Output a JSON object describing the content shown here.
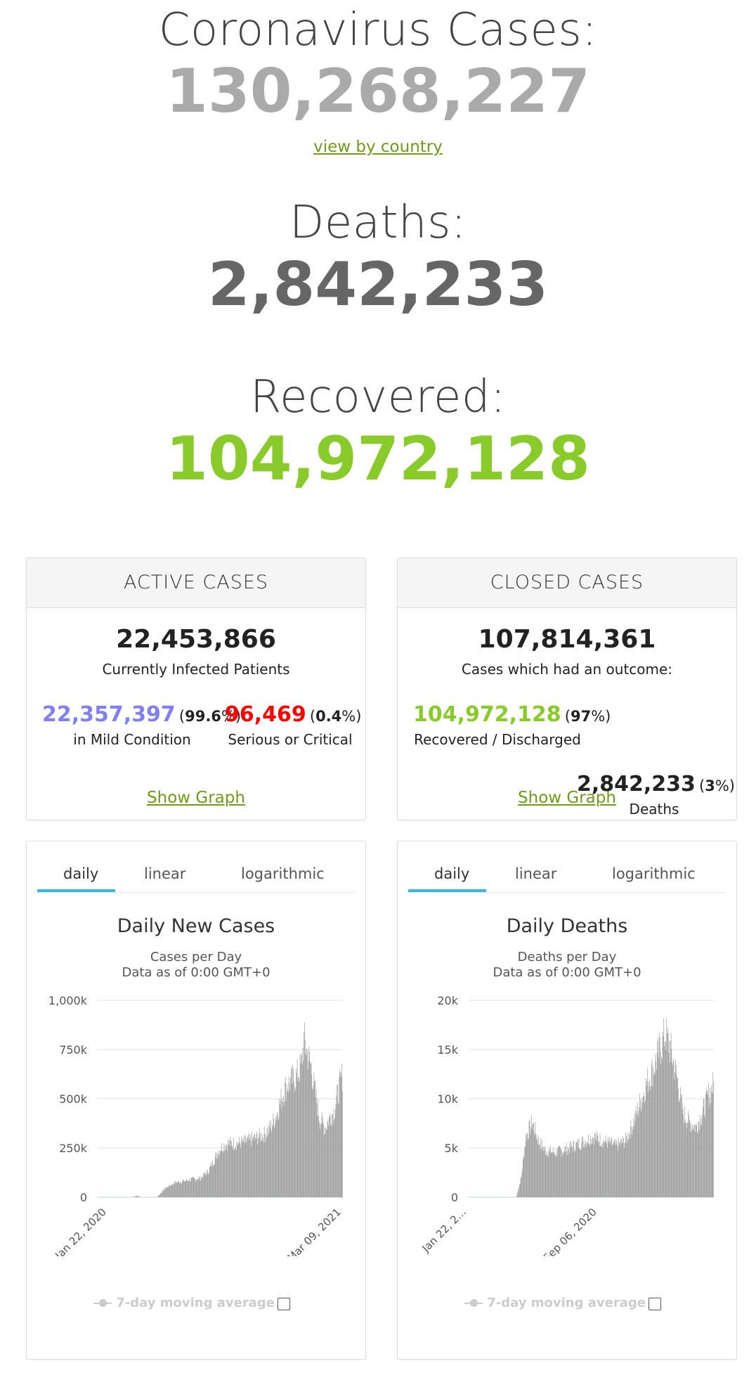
{
  "summary": {
    "cases_label": "Coronavirus Cases:",
    "cases_value": "130,268,227",
    "view_by_country": "view by country",
    "deaths_label": "Deaths:",
    "deaths_value": "2,842,233",
    "recovered_label": "Recovered:",
    "recovered_value": "104,972,128"
  },
  "active": {
    "title": "ACTIVE CASES",
    "total": "22,453,866",
    "total_label": "Currently Infected Patients",
    "mild_value": "22,357,397",
    "mild_pct": "99.6",
    "mild_label": "in Mild Condition",
    "serious_value": "96,469",
    "serious_pct": "0.4",
    "serious_label": "Serious or Critical",
    "show_graph": "Show Graph"
  },
  "closed": {
    "title": "CLOSED CASES",
    "total": "107,814,361",
    "total_label": "Cases which had an outcome:",
    "recovered_value": "104,972,128",
    "recovered_pct": "97",
    "recovered_label": "Recovered / Discharged",
    "deaths_value": "2,842,233",
    "deaths_pct": "3",
    "deaths_label": "Deaths",
    "show_graph": "Show Graph"
  },
  "colors": {
    "mild": "#8080f0",
    "serious": "#ff0000",
    "recovered": "#8acb2c",
    "link": "#6e9b1a",
    "tab_active": "#35b9e8",
    "bar": "#999999"
  },
  "chart_tabs": [
    "daily",
    "linear",
    "logarithmic"
  ],
  "chart_data": [
    {
      "type": "bar",
      "title": "Daily New Cases",
      "subtitle_line1": "Cases per Day",
      "subtitle_line2": "Data as of 0:00 GMT+0",
      "y_ticks": [
        "0",
        "250k",
        "500k",
        "750k",
        "1,000k"
      ],
      "ylim": [
        0,
        1000000
      ],
      "x_tick_labels": [
        "Jan 22, 2020",
        "Mar 09, 2021"
      ],
      "legend": "7-day moving average",
      "grid": true,
      "envelope_points": [
        [
          0,
          0
        ],
        [
          0.25,
          0
        ],
        [
          0.28,
          8000
        ],
        [
          0.3,
          0
        ],
        [
          0.42,
          0
        ],
        [
          0.48,
          50000
        ],
        [
          0.55,
          80000
        ],
        [
          0.6,
          85000
        ],
        [
          0.66,
          95000
        ],
        [
          0.72,
          100000
        ],
        [
          0.78,
          140000
        ],
        [
          0.82,
          200000
        ],
        [
          0.86,
          260000
        ],
        [
          0.9,
          285000
        ],
        [
          1.0,
          290000
        ],
        [
          1.06,
          300000
        ],
        [
          1.12,
          320000
        ],
        [
          1.18,
          340000
        ],
        [
          1.22,
          380000
        ],
        [
          1.26,
          450000
        ],
        [
          1.3,
          550000
        ],
        [
          1.33,
          600000
        ],
        [
          1.36,
          620000
        ],
        [
          1.4,
          650000
        ],
        [
          1.43,
          700000
        ],
        [
          1.45,
          840000
        ],
        [
          1.47,
          780000
        ],
        [
          1.5,
          700000
        ],
        [
          1.53,
          550000
        ],
        [
          1.56,
          420000
        ],
        [
          1.6,
          370000
        ],
        [
          1.63,
          430000
        ],
        [
          1.66,
          460000
        ],
        [
          1.7,
          600000
        ],
        [
          1.72,
          650000
        ]
      ]
    },
    {
      "type": "bar",
      "title": "Daily Deaths",
      "subtitle_line1": "Deaths per Day",
      "subtitle_line2": "Data as of 0:00 GMT+0",
      "y_ticks": [
        "0",
        "5k",
        "10k",
        "15k",
        "20k"
      ],
      "ylim": [
        0,
        20000
      ],
      "x_tick_labels": [
        "Jan 22, 2...",
        "Sep 06, 2020"
      ],
      "legend": "7-day moving average",
      "grid": true,
      "envelope_points": [
        [
          0,
          0
        ],
        [
          0.3,
          0
        ],
        [
          0.33,
          2000
        ],
        [
          0.36,
          6500
        ],
        [
          0.4,
          8000
        ],
        [
          0.44,
          6000
        ],
        [
          0.48,
          5000
        ],
        [
          0.55,
          4800
        ],
        [
          0.62,
          5200
        ],
        [
          0.7,
          5800
        ],
        [
          0.78,
          6500
        ],
        [
          0.85,
          6000
        ],
        [
          0.92,
          5500
        ],
        [
          0.98,
          6000
        ],
        [
          1.03,
          8000
        ],
        [
          1.08,
          10500
        ],
        [
          1.12,
          12500
        ],
        [
          1.16,
          14000
        ],
        [
          1.2,
          16000
        ],
        [
          1.23,
          17500
        ],
        [
          1.26,
          16000
        ],
        [
          1.3,
          13000
        ],
        [
          1.34,
          9000
        ],
        [
          1.38,
          8000
        ],
        [
          1.42,
          7500
        ],
        [
          1.46,
          9000
        ],
        [
          1.5,
          11000
        ],
        [
          1.53,
          12000
        ]
      ]
    }
  ]
}
